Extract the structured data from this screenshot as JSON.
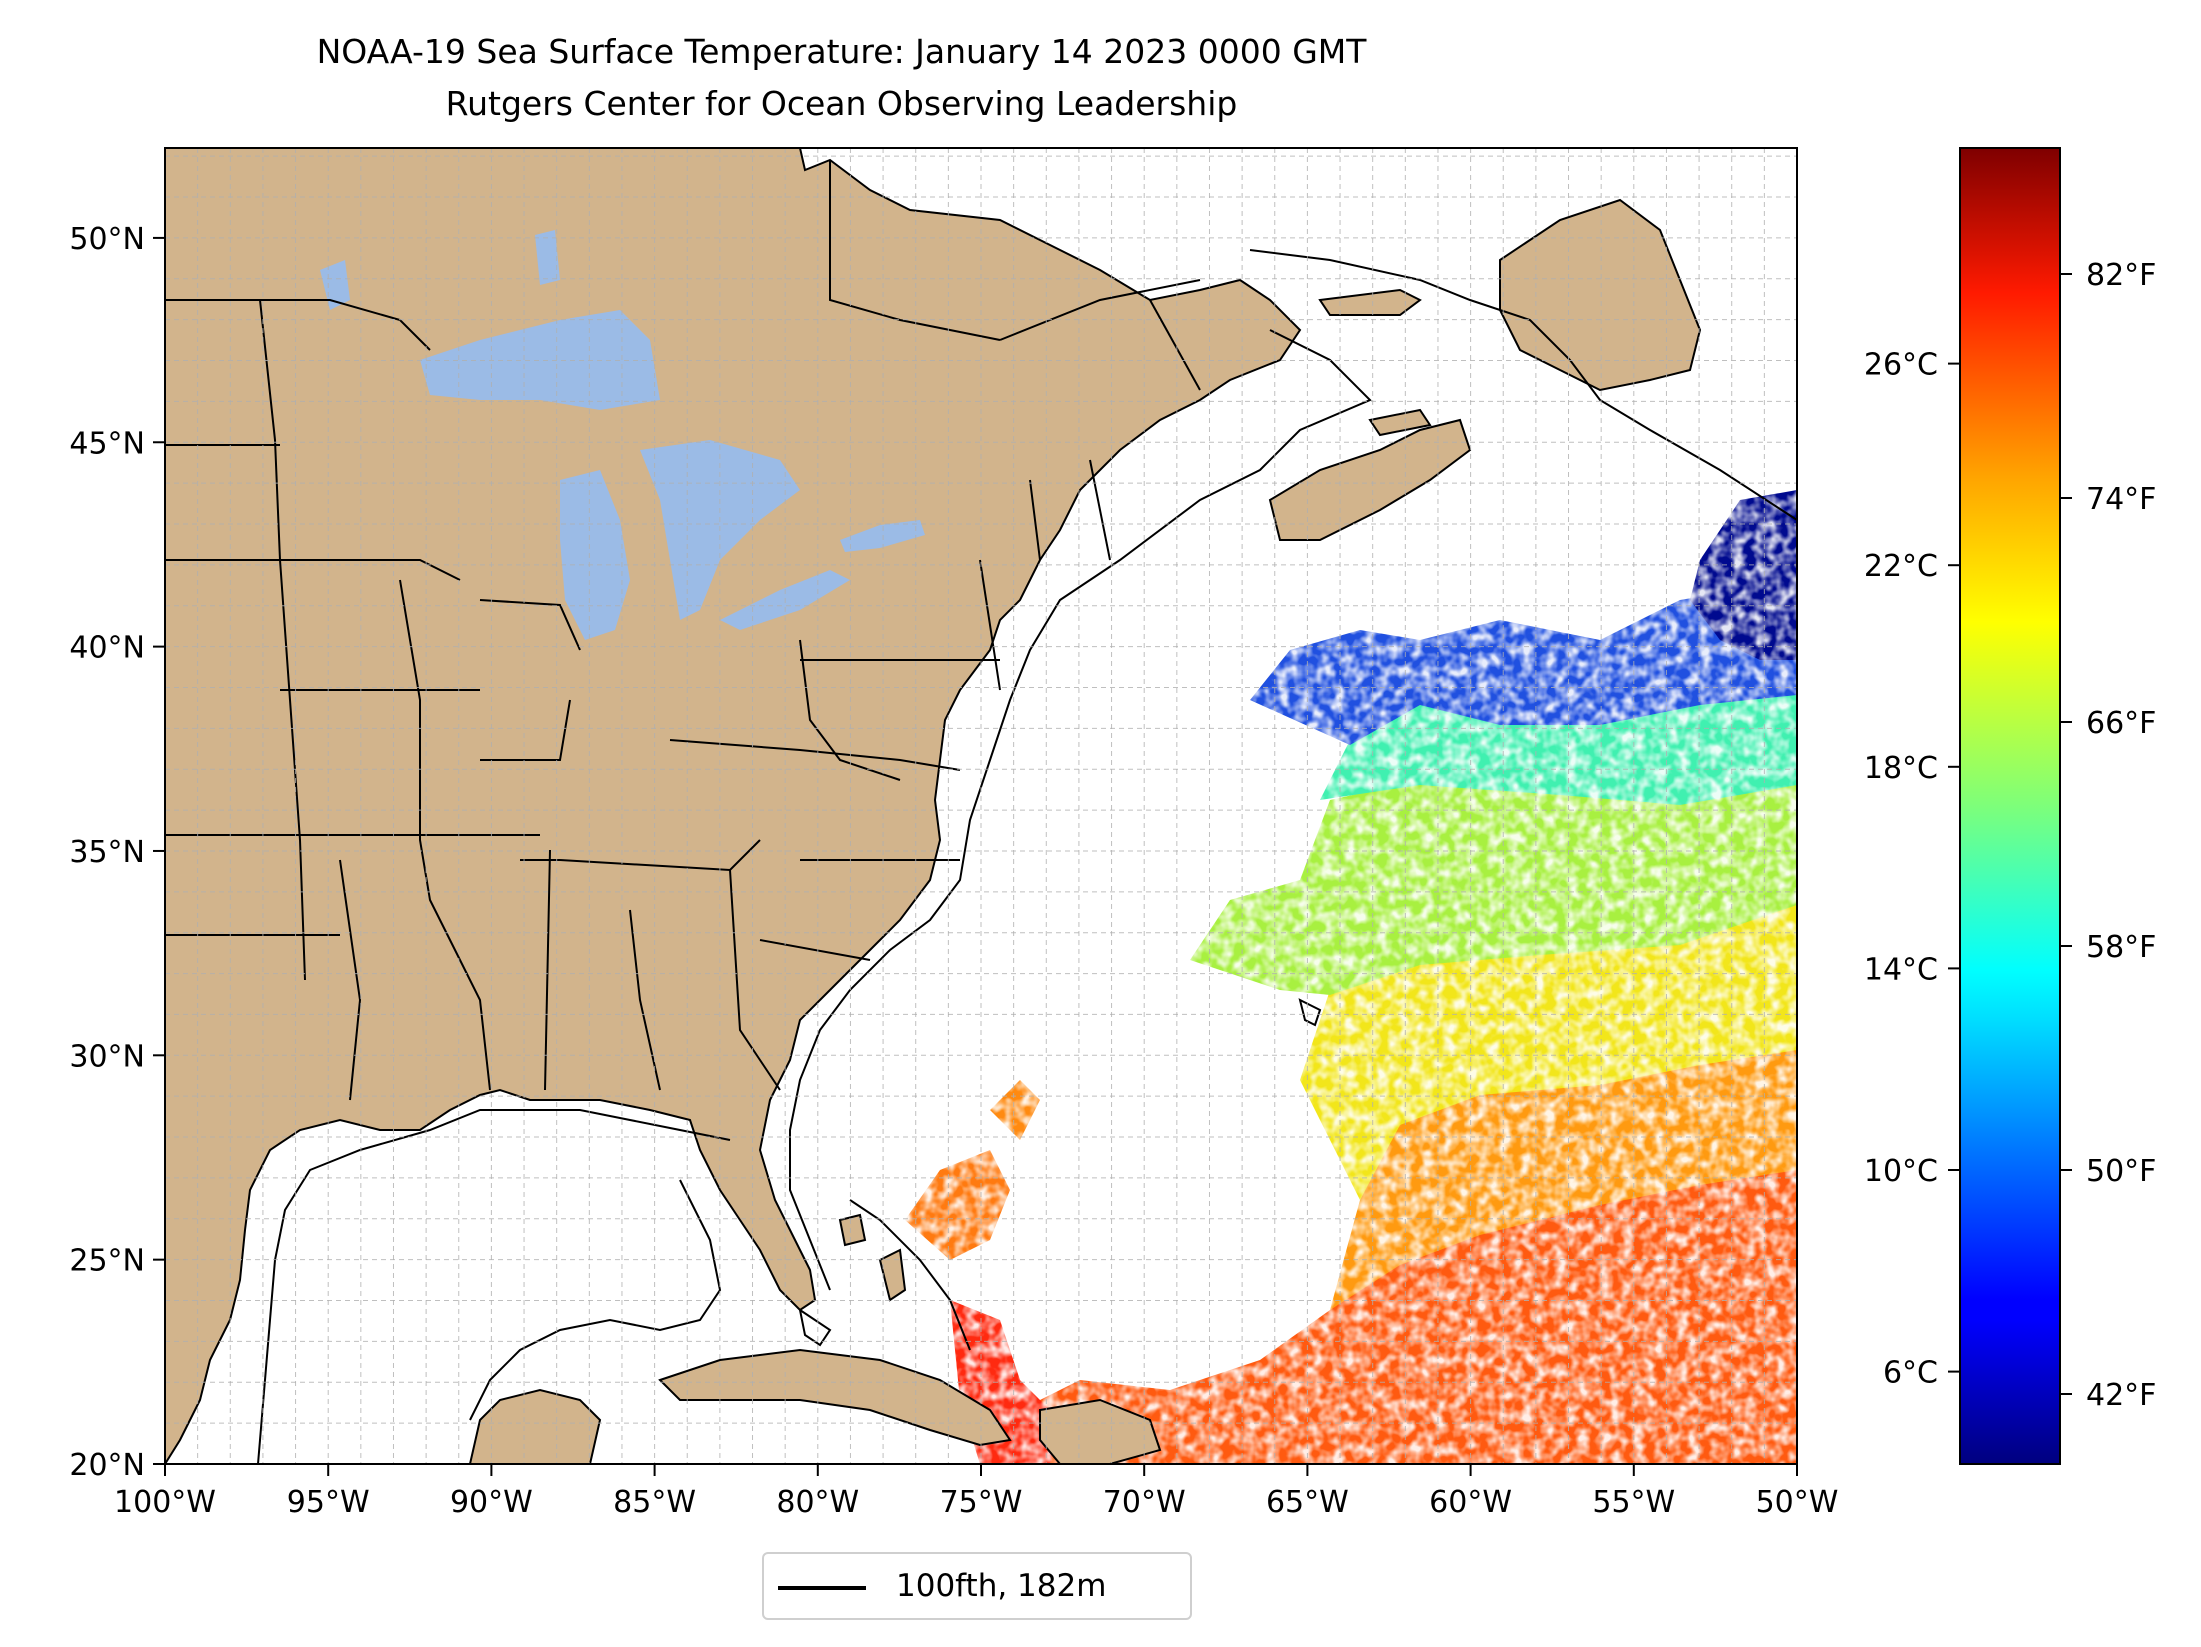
{
  "title": "NOAA-19 Sea Surface Temperature: January 14 2023 0000 GMT",
  "subtitle": "Rutgers Center for Ocean Observing Leadership",
  "legend_label": "100fth, 182m",
  "colors": {
    "land": "#d2b48c",
    "lakes": "#9bbbe6",
    "grid": "#b0b0b0",
    "contour": "#000000"
  },
  "map_extent": {
    "lon": [
      -100,
      -50
    ],
    "lat": [
      20,
      52.2
    ]
  },
  "lon_ticks": [
    {
      "lon": -100,
      "label": "100°W"
    },
    {
      "lon": -95,
      "label": "95°W"
    },
    {
      "lon": -90,
      "label": "90°W"
    },
    {
      "lon": -85,
      "label": "85°W"
    },
    {
      "lon": -80,
      "label": "80°W"
    },
    {
      "lon": -75,
      "label": "75°W"
    },
    {
      "lon": -70,
      "label": "70°W"
    },
    {
      "lon": -65,
      "label": "65°W"
    },
    {
      "lon": -60,
      "label": "60°W"
    },
    {
      "lon": -55,
      "label": "55°W"
    },
    {
      "lon": -50,
      "label": "50°W"
    }
  ],
  "lat_ticks": [
    {
      "lat": 20,
      "label": "20°N"
    },
    {
      "lat": 25,
      "label": "25°N"
    },
    {
      "lat": 30,
      "label": "30°N"
    },
    {
      "lat": 35,
      "label": "35°N"
    },
    {
      "lat": 40,
      "label": "40°N"
    },
    {
      "lat": 45,
      "label": "45°N"
    },
    {
      "lat": 50,
      "label": "50°N"
    }
  ],
  "colorbar": {
    "colormap": "jet",
    "range_f": [
      39.5,
      86.5
    ],
    "celsius_ticks": [
      {
        "c": 6,
        "label": "6°C"
      },
      {
        "c": 10,
        "label": "10°C"
      },
      {
        "c": 14,
        "label": "14°C"
      },
      {
        "c": 18,
        "label": "18°C"
      },
      {
        "c": 22,
        "label": "22°C"
      },
      {
        "c": 26,
        "label": "26°C"
      }
    ],
    "fahrenheit_ticks": [
      {
        "f": 42,
        "label": "42°F"
      },
      {
        "f": 50,
        "label": "50°F"
      },
      {
        "f": 58,
        "label": "58°F"
      },
      {
        "f": 66,
        "label": "66°F"
      },
      {
        "f": 74,
        "label": "74°F"
      },
      {
        "f": 82,
        "label": "82°F"
      }
    ]
  }
}
